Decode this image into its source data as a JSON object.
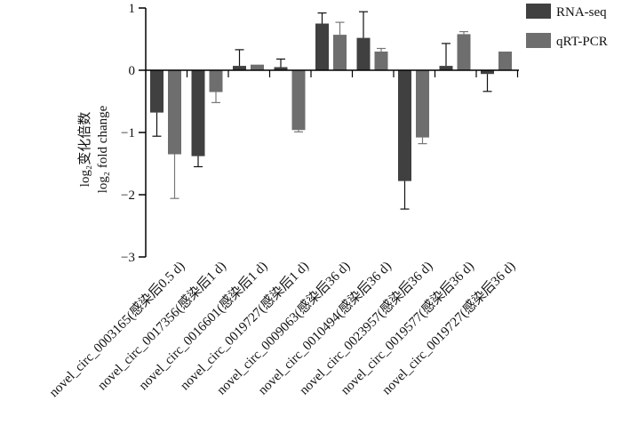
{
  "chart_data": {
    "type": "bar",
    "title": "",
    "ylabel_lines": [
      "log₂变化倍数",
      "log₂ fold change"
    ],
    "xlabel": "",
    "ylim": [
      -3,
      1
    ],
    "yticks": [
      -3,
      -2,
      -1,
      0,
      1
    ],
    "ytick_labels": [
      "−3",
      "−2",
      "−1",
      "0",
      "1"
    ],
    "categories": [
      "novel_circ_0003165(感染后0.5 d)",
      "novel_circ_0017356(感染后1 d)",
      "novel_circ_0016601(感染后1 d)",
      "novel_circ_0019727(感染后1 d)",
      "novel_circ_0009063(感染后36 d)",
      "novel_circ_0010494(感染后36 d)",
      "novel_circ_0023957(感染后36 d)",
      "novel_circ_0019577(感染后36 d)",
      "novel_circ_0019727(感染后36 d)"
    ],
    "series": [
      {
        "name": "RNA-seq",
        "color": "#404040",
        "values": [
          -0.68,
          -1.38,
          0.07,
          0.05,
          0.75,
          0.52,
          -1.78,
          0.07,
          -0.06
        ],
        "errors": [
          0.38,
          0.17,
          0.26,
          0.13,
          0.17,
          0.42,
          0.45,
          0.36,
          0.28
        ]
      },
      {
        "name": "qRT-PCR",
        "color": "#6e6e6e",
        "values": [
          -1.35,
          -0.35,
          0.09,
          -0.96,
          0.57,
          0.3,
          -1.08,
          0.58,
          0.3
        ],
        "errors": [
          0.71,
          0.17,
          0.0,
          0.03,
          0.2,
          0.05,
          0.1,
          0.04,
          0.01
        ]
      }
    ],
    "legend": {
      "position": "top-right"
    }
  }
}
